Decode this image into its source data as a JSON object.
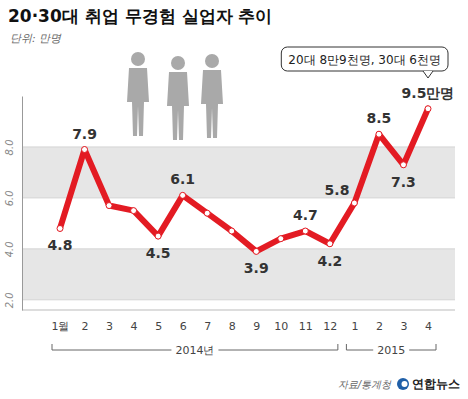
{
  "chart_data": {
    "type": "line",
    "title": "20·30대 취업 무경험 실업자 추이",
    "subtitle": "단위: 만명",
    "categories": [
      "1월",
      "2",
      "3",
      "4",
      "5",
      "6",
      "7",
      "8",
      "9",
      "10",
      "11",
      "12",
      "1",
      "2",
      "3",
      "4"
    ],
    "group_labels": [
      "2014년",
      "2015"
    ],
    "values": [
      4.8,
      7.9,
      5.7,
      5.5,
      4.5,
      6.1,
      5.4,
      4.7,
      3.9,
      4.4,
      4.7,
      4.2,
      5.8,
      8.5,
      7.3,
      9.5
    ],
    "value_labels": [
      "4.8",
      "7.9",
      null,
      null,
      "4.5",
      "6.1",
      null,
      null,
      "3.9",
      null,
      "4.7",
      "4.2",
      "5.8",
      "8.5",
      "7.3",
      "9.5만명"
    ],
    "data_labels": true,
    "color": "#e31b23",
    "marker": "circle",
    "annotation": "20대 8만9천명, 30대 6천명",
    "source": "자료/통계청",
    "logo": "연합뉴스",
    "ylim": [
      1.6,
      10
    ],
    "yticks": [
      {
        "value": 2,
        "label": "2.0"
      },
      {
        "value": 4,
        "label": "4.0"
      },
      {
        "value": 6,
        "label": "6.0"
      },
      {
        "value": 8,
        "label": "8.0"
      }
    ],
    "grid": true
  }
}
